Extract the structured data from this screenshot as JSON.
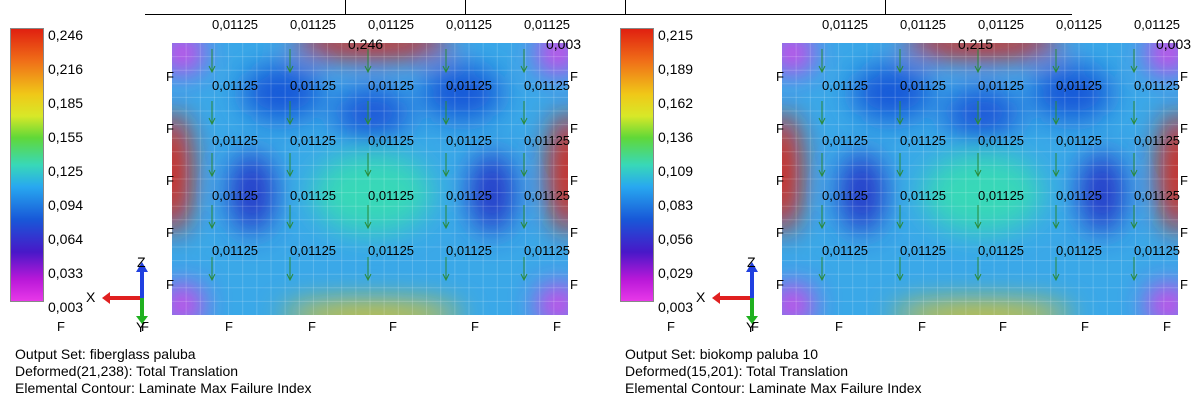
{
  "panels": [
    {
      "legend_ticks": [
        "0,246",
        "0,216",
        "0,185",
        "0,155",
        "0,125",
        "0,094",
        "0,064",
        "0,033",
        "0,003"
      ],
      "max_label": "0,246",
      "corner_label": "0,003",
      "load_value": "0,01125",
      "fixed_label": "F",
      "axis_x": "X",
      "axis_y": "Y",
      "axis_z": "Z",
      "info": [
        "Output Set: fiberglass paluba",
        "Deformed(21,238): Total Translation",
        "Elemental Contour: Laminate Max Failure Index"
      ]
    },
    {
      "legend_ticks": [
        "0,215",
        "0,189",
        "0,162",
        "0,136",
        "0,109",
        "0,083",
        "0,056",
        "0,029",
        "0,003"
      ],
      "max_label": "0,215",
      "corner_label": "0,003",
      "load_value": "0,01125",
      "fixed_label": "F",
      "axis_x": "X",
      "axis_y": "Y",
      "axis_z": "Z",
      "info": [
        "Output Set: biokomp paluba 10",
        "Deformed(15,201): Total Translation",
        "Elemental Contour: Laminate Max Failure Index"
      ]
    }
  ],
  "colors": {
    "low": "#e838e8",
    "mid_low": "#1858d8",
    "mid": "#38d8b8",
    "mid_high": "#f0c818",
    "high": "#e02010",
    "axis_x": "#e02020",
    "axis_y": "#20b020",
    "axis_z": "#2040e0"
  }
}
